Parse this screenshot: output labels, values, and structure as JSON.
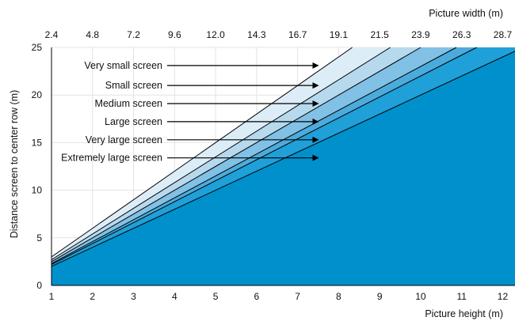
{
  "chart_data": {
    "type": "area",
    "title": "",
    "xlabel": "Picture height (m)",
    "ylabel": "Distance screen to center row (m)",
    "x2label": "Picture width (m)",
    "xlim": [
      1,
      12.3
    ],
    "ylim": [
      0,
      25
    ],
    "x_ticks": [
      1,
      2,
      3,
      4,
      5,
      6,
      7,
      8,
      9,
      10,
      11,
      12
    ],
    "y_ticks": [
      0,
      5,
      10,
      15,
      20,
      25
    ],
    "x2_ticks": [
      {
        "x": 1,
        "label": "2.4"
      },
      {
        "x": 2,
        "label": "4.8"
      },
      {
        "x": 3,
        "label": "7.2"
      },
      {
        "x": 4,
        "label": "9.6"
      },
      {
        "x": 5,
        "label": "12.0"
      },
      {
        "x": 6,
        "label": "14.3"
      },
      {
        "x": 7,
        "label": "16.7"
      },
      {
        "x": 8,
        "label": "19.1"
      },
      {
        "x": 9,
        "label": "21.5"
      },
      {
        "x": 10,
        "label": "23.9"
      },
      {
        "x": 11,
        "label": "26.3"
      },
      {
        "x": 12,
        "label": "28.7"
      }
    ],
    "grid": true,
    "grid_color": "#e3e3e3",
    "boundary_color": "#000000",
    "series": [
      {
        "name": "Very small screen",
        "slope": 3.0,
        "color": "#dcedf8",
        "label_y": 23.1
      },
      {
        "name": "Small screen",
        "slope": 2.7,
        "color": "#b7d9ee",
        "label_y": 21.0
      },
      {
        "name": "Medium screen",
        "slope": 2.5,
        "color": "#80c1e5",
        "label_y": 19.1
      },
      {
        "name": "Large screen",
        "slope": 2.3,
        "color": "#4cabdc",
        "label_y": 17.2
      },
      {
        "name": "Very large screen",
        "slope": 2.2,
        "color": "#1fa0d8",
        "label_y": 15.3
      },
      {
        "name": "Extremely large screen",
        "slope": 2.0,
        "color": "#0090cc",
        "label_y": 13.4
      }
    ],
    "annotation_arrow_x": [
      1.0,
      7.5
    ]
  }
}
